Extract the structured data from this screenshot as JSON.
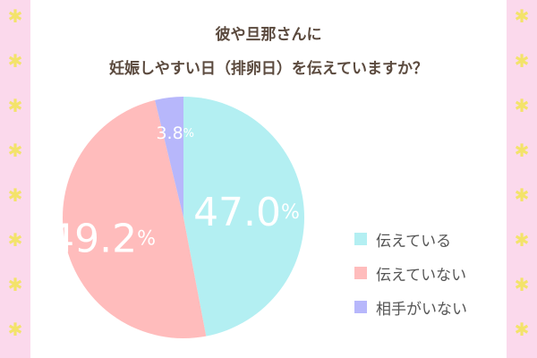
{
  "header": {
    "title_line1": "彼や旦那さんに",
    "title_line2": "妊娠しやすい日（排卵日）を伝えていますか？"
  },
  "decoration": {
    "strip_color": "#fbd9ec",
    "star_color": "#f3e36a",
    "star_glyph": "✱",
    "icon": "asterisk-star-icon"
  },
  "chart_data": {
    "type": "pie",
    "title": "彼や旦那さんに 妊娠しやすい日（排卵日）を伝えていますか？",
    "unit": "%",
    "start": "12 o'clock, clockwise",
    "slices": [
      {
        "label": "伝えている",
        "value": 47.0,
        "display": "47.0",
        "color": "#b3eff2"
      },
      {
        "label": "伝えていない",
        "value": 49.2,
        "display": "49.2",
        "color": "#ffbcbc"
      },
      {
        "label": "相手がいない",
        "value": 3.8,
        "display": "3.8",
        "color": "#b7b7fb"
      }
    ],
    "legend_position": "right"
  }
}
